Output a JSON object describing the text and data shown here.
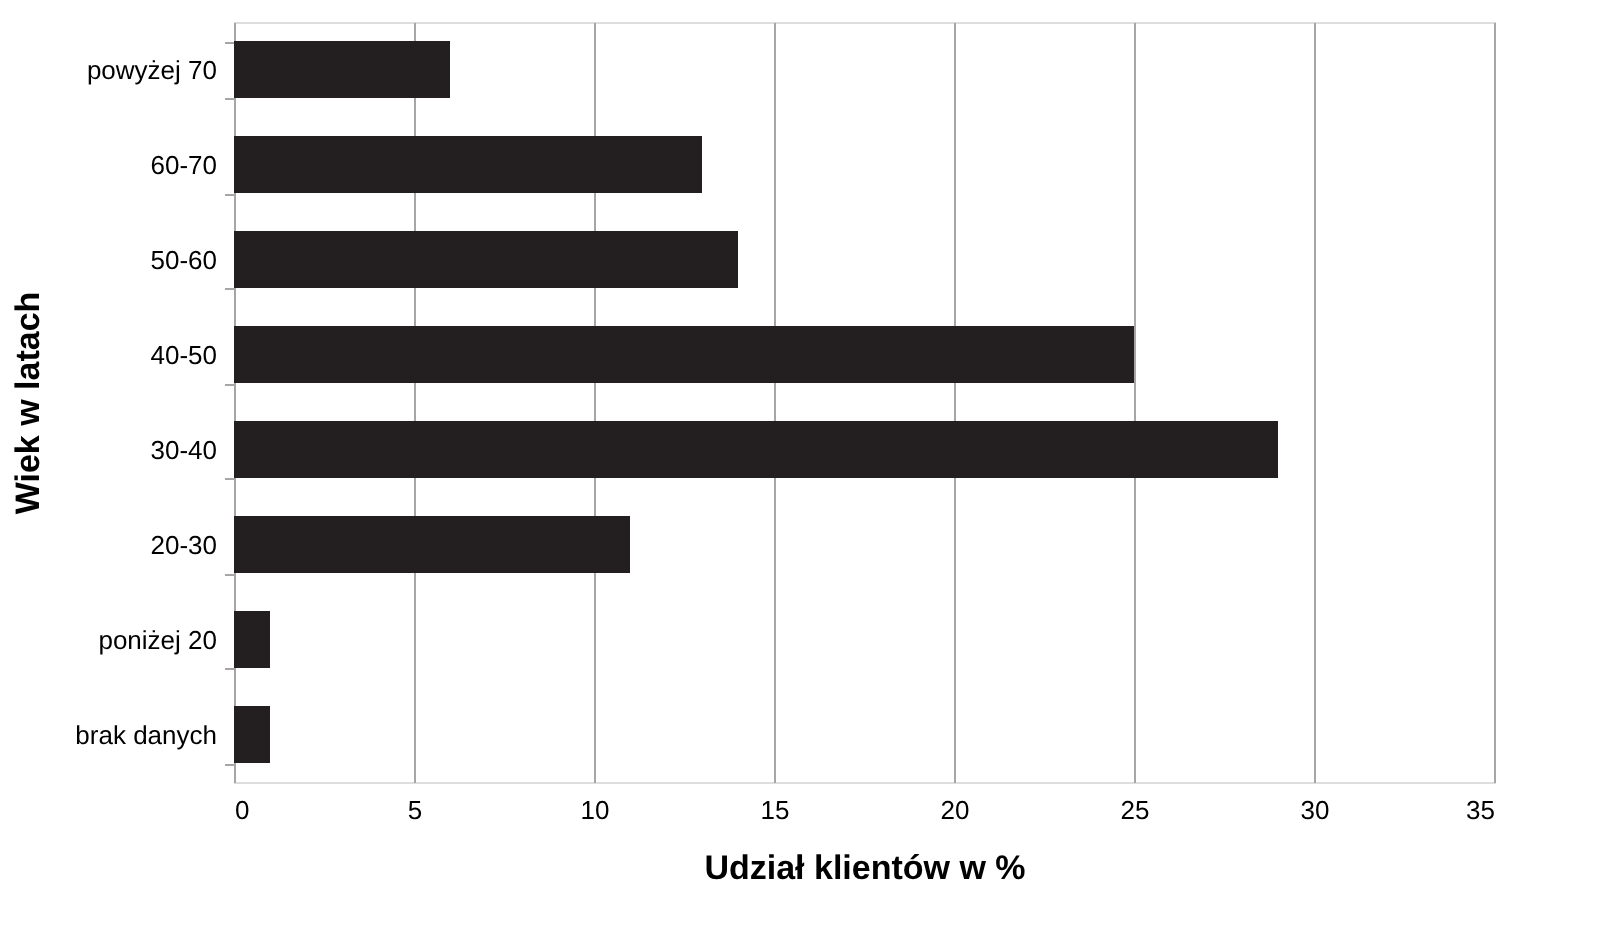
{
  "chart_data": {
    "type": "bar",
    "orientation": "horizontal",
    "xlabel": "Udział klientów w %",
    "ylabel": "Wiek w latach",
    "categories": [
      "powyżej 70",
      "60-70",
      "50-60",
      "40-50",
      "30-40",
      "20-30",
      "poniżej 20",
      "brak danych"
    ],
    "values": [
      6,
      13,
      14,
      25,
      29,
      11,
      1,
      1
    ],
    "color": "#231f20",
    "xlim": [
      0,
      35
    ],
    "xticks": [
      0,
      5,
      10,
      15,
      20,
      25,
      30,
      35
    ],
    "grid": "x"
  }
}
